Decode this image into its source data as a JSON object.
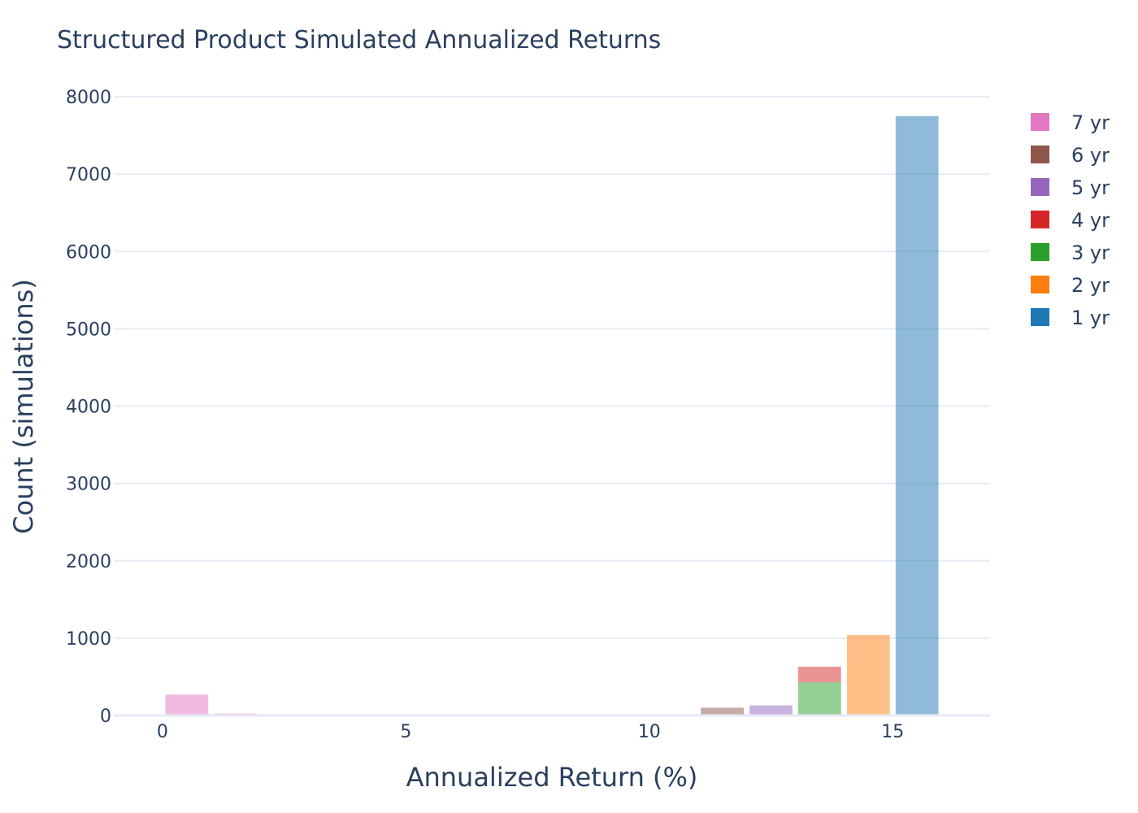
{
  "chart_data": {
    "type": "bar",
    "title": "Structured Product Simulated Annualized Returns",
    "xlabel": "Annualized Return (%)",
    "ylabel": "Count (simulations)",
    "xlim": [
      -1,
      17
    ],
    "ylim": [
      0,
      8400
    ],
    "x_ticks": [
      0,
      5,
      10,
      15
    ],
    "y_ticks": [
      0,
      1000,
      2000,
      3000,
      4000,
      5000,
      6000,
      7000,
      8000
    ],
    "grid": true,
    "legend_position": "right",
    "bin_width": 1,
    "bar_opacity": 0.5,
    "series": [
      {
        "name": "1 yr",
        "color": "#1f77b4",
        "bars": [
          {
            "x": 15.5,
            "y": 7750
          }
        ]
      },
      {
        "name": "2 yr",
        "color": "#ff7f0e",
        "bars": [
          {
            "x": 14.5,
            "y": 1040
          }
        ]
      },
      {
        "name": "3 yr",
        "color": "#2ca02c",
        "bars": [
          {
            "x": 13.5,
            "y": 430
          }
        ]
      },
      {
        "name": "4 yr",
        "color": "#d62728",
        "bars": [
          {
            "x": 13.5,
            "y": 200,
            "base": 430
          }
        ]
      },
      {
        "name": "5 yr",
        "color": "#9467bd",
        "bars": [
          {
            "x": 12.5,
            "y": 130
          }
        ]
      },
      {
        "name": "6 yr",
        "color": "#8c564b",
        "bars": [
          {
            "x": 11.5,
            "y": 100
          }
        ]
      },
      {
        "name": "7 yr",
        "color": "#e377c2",
        "bars": [
          {
            "x": 0.5,
            "y": 270
          },
          {
            "x": 1.5,
            "y": 25
          },
          {
            "x": 2.5,
            "y": 12
          },
          {
            "x": 3.5,
            "y": 6
          },
          {
            "x": 4.5,
            "y": 4
          },
          {
            "x": 5.5,
            "y": 3
          },
          {
            "x": 6.5,
            "y": 2
          },
          {
            "x": 7.5,
            "y": 2
          },
          {
            "x": 8.5,
            "y": 1
          },
          {
            "x": 9.5,
            "y": 1
          },
          {
            "x": 10.5,
            "y": 1
          }
        ]
      }
    ],
    "legend_order": [
      "7 yr",
      "6 yr",
      "5 yr",
      "4 yr",
      "3 yr",
      "2 yr",
      "1 yr"
    ]
  }
}
